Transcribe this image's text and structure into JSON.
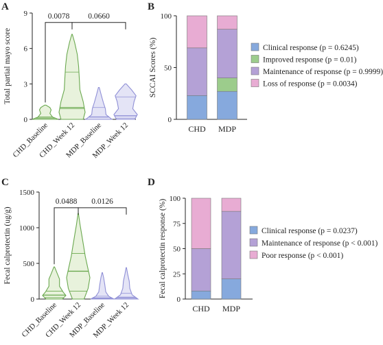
{
  "panels": {
    "A": "A",
    "B": "B",
    "C": "C",
    "D": "D"
  },
  "colors": {
    "green": "#9dc77f",
    "green_fill": "#e8f2dc",
    "green_line": "#6aa84f",
    "blue_line": "#8f8fd6",
    "blue_fill": "#e4e4f6",
    "clinical": "#86a9dd",
    "improved": "#9ccc8c",
    "maintenance": "#b4a1d6",
    "loss": "#e8acd3"
  },
  "chart_data": [
    {
      "panel": "A",
      "type": "violin",
      "ylabel": "Total partial mayo score",
      "ylim": [
        0,
        9
      ],
      "yticks": [
        "0",
        "3",
        "6",
        "9"
      ],
      "categories": [
        "CHD_Baseline",
        "CHD_Week 12",
        "MDP_Baseline",
        "MDP_Week 12"
      ],
      "groups": [
        {
          "name": "CHD_Baseline",
          "color": "green",
          "min": 0,
          "max": 1.2,
          "median": 0.1,
          "q1": 0,
          "q3": 0.2,
          "profile": [
            [
              0,
              1.0
            ],
            [
              0.2,
              0.55
            ],
            [
              0.5,
              0.35
            ],
            [
              0.8,
              0.45
            ],
            [
              1.0,
              0.35
            ],
            [
              1.2,
              0.05
            ]
          ]
        },
        {
          "name": "CHD_Week 12",
          "color": "green",
          "min": 0,
          "max": 7.2,
          "median": 1,
          "q1": 0.9,
          "q3": 4,
          "profile": [
            [
              0,
              0.85
            ],
            [
              0.6,
              1.0
            ],
            [
              1.5,
              0.85
            ],
            [
              2.5,
              0.6
            ],
            [
              3.5,
              0.55
            ],
            [
              4.5,
              0.5
            ],
            [
              5.5,
              0.4
            ],
            [
              6.5,
              0.2
            ],
            [
              7.2,
              0.02
            ]
          ]
        },
        {
          "name": "MDP_Baseline",
          "color": "blue",
          "min": 0,
          "max": 2.7,
          "median": 0.2,
          "q1": 0,
          "q3": 1,
          "profile": [
            [
              0,
              1.0
            ],
            [
              0.4,
              0.55
            ],
            [
              0.9,
              0.5
            ],
            [
              1.4,
              0.35
            ],
            [
              2.0,
              0.2
            ],
            [
              2.7,
              0.03
            ]
          ]
        },
        {
          "name": "MDP_Week 12",
          "color": "blue",
          "min": 0,
          "max": 3.0,
          "median": 0.3,
          "q1": 0.1,
          "q3": 1.9,
          "profile": [
            [
              0,
              0.7
            ],
            [
              0.4,
              0.9
            ],
            [
              0.9,
              0.55
            ],
            [
              1.5,
              0.65
            ],
            [
              2.0,
              0.8
            ],
            [
              2.5,
              0.45
            ],
            [
              3.0,
              0.05
            ]
          ]
        }
      ],
      "comparisons": [
        {
          "label": "0.0078",
          "from": 0,
          "to": 1,
          "y": 8.2
        },
        {
          "label": "0.0660",
          "from": 1,
          "to": 3,
          "y": 8.2
        }
      ]
    },
    {
      "panel": "B",
      "type": "bar",
      "stacked": true,
      "ylabel": "SCCAI Scores (%)",
      "ylim": [
        0,
        100
      ],
      "yticks": [
        "0",
        "50",
        "100"
      ],
      "categories": [
        "CHD",
        "MDP"
      ],
      "series": [
        {
          "name": "Clinical response (p = 0.6245)",
          "color": "clinical",
          "values": [
            23,
            27
          ]
        },
        {
          "name": "Improved response (p = 0.01)",
          "color": "improved",
          "values": [
            0,
            13
          ]
        },
        {
          "name": "Maintenance of response (p = 0.9999)",
          "color": "maintenance",
          "values": [
            46,
            47
          ]
        },
        {
          "name": "Loss of response (p = 0.0034)",
          "color": "loss",
          "values": [
            31,
            13
          ]
        }
      ]
    },
    {
      "panel": "C",
      "type": "violin",
      "ylabel": "Fecal calprotectin (ug/g)",
      "ylim": [
        0,
        1500
      ],
      "yticks": [
        "0",
        "500",
        "1000",
        "1500"
      ],
      "categories": [
        "CHD_Baseline",
        "CHD_Week 12",
        "MDP_Baseline",
        "MDP_Week 12"
      ],
      "groups": [
        {
          "name": "CHD_Baseline",
          "color": "green",
          "min": 0,
          "max": 450,
          "median": 55,
          "q1": 20,
          "q3": 110,
          "profile": [
            [
              0,
              0.7
            ],
            [
              50,
              1.0
            ],
            [
              100,
              0.75
            ],
            [
              180,
              0.45
            ],
            [
              280,
              0.45
            ],
            [
              360,
              0.25
            ],
            [
              450,
              0.03
            ]
          ]
        },
        {
          "name": "CHD_Week 12",
          "color": "green",
          "min": 0,
          "max": 1200,
          "median": 390,
          "q1": 110,
          "q3": 640,
          "profile": [
            [
              0,
              0.5
            ],
            [
              150,
              0.85
            ],
            [
              300,
              1.0
            ],
            [
              450,
              0.8
            ],
            [
              600,
              0.6
            ],
            [
              750,
              0.45
            ],
            [
              900,
              0.3
            ],
            [
              1050,
              0.15
            ],
            [
              1200,
              0.02
            ]
          ]
        },
        {
          "name": "MDP_Baseline",
          "color": "blue",
          "min": 0,
          "max": 370,
          "median": 15,
          "q1": 5,
          "q3": 40,
          "profile": [
            [
              0,
              1.0
            ],
            [
              40,
              0.55
            ],
            [
              100,
              0.3
            ],
            [
              200,
              0.22
            ],
            [
              300,
              0.12
            ],
            [
              370,
              0.02
            ]
          ]
        },
        {
          "name": "MDP_Week 12",
          "color": "blue",
          "min": 0,
          "max": 440,
          "median": 25,
          "q1": 10,
          "q3": 80,
          "profile": [
            [
              0,
              1.0
            ],
            [
              60,
              0.5
            ],
            [
              150,
              0.3
            ],
            [
              250,
              0.25
            ],
            [
              350,
              0.12
            ],
            [
              440,
              0.02
            ]
          ]
        }
      ],
      "comparisons": [
        {
          "label": "0.0488",
          "from": 0,
          "to": 1,
          "y": 1280
        },
        {
          "label": "0.0126",
          "from": 1,
          "to": 3,
          "y": 1280
        }
      ]
    },
    {
      "panel": "D",
      "type": "bar",
      "stacked": true,
      "ylabel": "Fecal calprotectin response (%)",
      "ylim": [
        0,
        100
      ],
      "yticks": [
        "0",
        "25",
        "50",
        "75",
        "100"
      ],
      "categories": [
        "CHD",
        "MDP"
      ],
      "series": [
        {
          "name": "Clinical response (p = 0.0237)",
          "color": "clinical",
          "values": [
            8,
            20
          ]
        },
        {
          "name": "Maintenance of response (p < 0.001)",
          "color": "maintenance",
          "values": [
            42,
            67
          ]
        },
        {
          "name": "Poor response (p < 0.001)",
          "color": "loss",
          "values": [
            50,
            13
          ]
        }
      ]
    }
  ]
}
